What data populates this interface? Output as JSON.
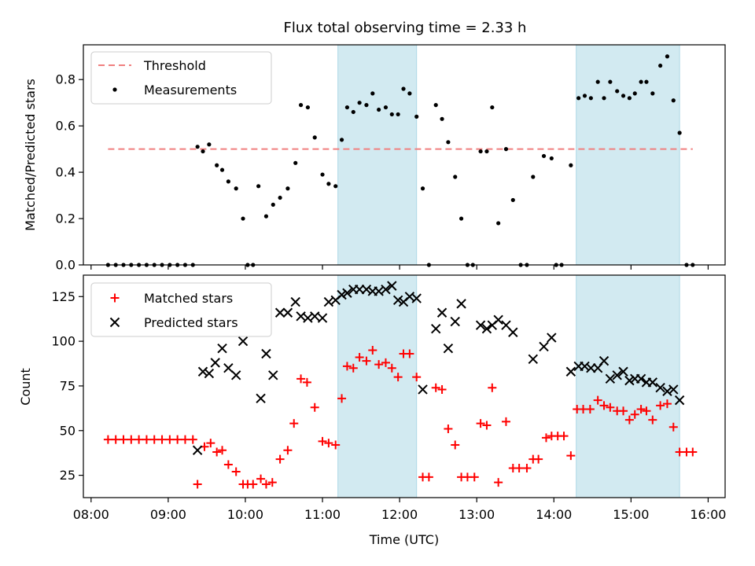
{
  "chart_data": [
    {
      "type": "scatter",
      "title": "Flux total observing time = 2.33 h",
      "ylabel": "Matched/Predicted stars",
      "xlabel": "",
      "xlim": [
        7.9,
        16.22
      ],
      "ylim": [
        0,
        0.95
      ],
      "yticks": [
        0.0,
        0.2,
        0.4,
        0.6,
        0.8
      ],
      "ytick_labels": [
        "0.0",
        "0.2",
        "0.4",
        "0.6",
        "0.8"
      ],
      "shaded_intervals": [
        [
          11.2,
          12.22
        ],
        [
          14.29,
          15.63
        ]
      ],
      "shade_color": "#add8e6",
      "legend_position": "upper left",
      "threshold": {
        "name": "Threshold",
        "value": 0.5,
        "x_range": [
          8.22,
          15.8
        ],
        "color": "#f08080"
      },
      "series": [
        {
          "name": "Measurements",
          "marker": "dot",
          "color": "#000000",
          "points": [
            [
              8.22,
              0
            ],
            [
              8.32,
              0
            ],
            [
              8.42,
              0
            ],
            [
              8.52,
              0
            ],
            [
              8.62,
              0
            ],
            [
              8.72,
              0
            ],
            [
              8.82,
              0
            ],
            [
              8.92,
              0
            ],
            [
              9.02,
              0
            ],
            [
              9.12,
              0
            ],
            [
              9.22,
              0
            ],
            [
              9.32,
              0
            ],
            [
              9.38,
              0.51
            ],
            [
              9.45,
              0.49
            ],
            [
              9.53,
              0.52
            ],
            [
              9.63,
              0.43
            ],
            [
              9.7,
              0.41
            ],
            [
              9.78,
              0.36
            ],
            [
              9.88,
              0.33
            ],
            [
              9.97,
              0.2
            ],
            [
              10.03,
              0
            ],
            [
              10.1,
              0
            ],
            [
              10.17,
              0.34
            ],
            [
              10.27,
              0.21
            ],
            [
              10.36,
              0.26
            ],
            [
              10.45,
              0.29
            ],
            [
              10.55,
              0.33
            ],
            [
              10.65,
              0.44
            ],
            [
              10.72,
              0.69
            ],
            [
              10.81,
              0.68
            ],
            [
              10.9,
              0.55
            ],
            [
              11.0,
              0.39
            ],
            [
              11.08,
              0.35
            ],
            [
              11.17,
              0.34
            ],
            [
              11.25,
              0.54
            ],
            [
              11.32,
              0.68
            ],
            [
              11.4,
              0.66
            ],
            [
              11.48,
              0.7
            ],
            [
              11.57,
              0.69
            ],
            [
              11.65,
              0.74
            ],
            [
              11.73,
              0.67
            ],
            [
              11.82,
              0.68
            ],
            [
              11.9,
              0.65
            ],
            [
              11.98,
              0.65
            ],
            [
              12.05,
              0.76
            ],
            [
              12.13,
              0.74
            ],
            [
              12.22,
              0.64
            ],
            [
              12.3,
              0.33
            ],
            [
              12.38,
              0
            ],
            [
              12.47,
              0.69
            ],
            [
              12.55,
              0.63
            ],
            [
              12.63,
              0.53
            ],
            [
              12.72,
              0.38
            ],
            [
              12.8,
              0.2
            ],
            [
              12.88,
              0
            ],
            [
              12.95,
              0
            ],
            [
              13.05,
              0.49
            ],
            [
              13.13,
              0.49
            ],
            [
              13.2,
              0.68
            ],
            [
              13.28,
              0.18
            ],
            [
              13.38,
              0.5
            ],
            [
              13.47,
              0.28
            ],
            [
              13.57,
              0
            ],
            [
              13.65,
              0
            ],
            [
              13.73,
              0.38
            ],
            [
              13.87,
              0.47
            ],
            [
              13.97,
              0.46
            ],
            [
              14.03,
              0
            ],
            [
              14.1,
              0
            ],
            [
              14.22,
              0.43
            ],
            [
              14.32,
              0.72
            ],
            [
              14.4,
              0.73
            ],
            [
              14.48,
              0.72
            ],
            [
              14.57,
              0.79
            ],
            [
              14.65,
              0.72
            ],
            [
              14.73,
              0.79
            ],
            [
              14.82,
              0.75
            ],
            [
              14.9,
              0.73
            ],
            [
              14.98,
              0.72
            ],
            [
              15.05,
              0.74
            ],
            [
              15.13,
              0.79
            ],
            [
              15.2,
              0.79
            ],
            [
              15.28,
              0.74
            ],
            [
              15.38,
              0.86
            ],
            [
              15.47,
              0.9
            ],
            [
              15.55,
              0.71
            ],
            [
              15.63,
              0.57
            ],
            [
              15.72,
              0
            ],
            [
              15.8,
              0
            ]
          ]
        }
      ]
    },
    {
      "type": "scatter",
      "title": "",
      "ylabel": "Count",
      "xlabel": "Time (UTC)",
      "xlim": [
        7.9,
        16.22
      ],
      "ylim": [
        12.5,
        137
      ],
      "xticks": [
        8,
        9,
        10,
        11,
        12,
        13,
        14,
        15,
        16
      ],
      "xtick_labels": [
        "08:00",
        "09:00",
        "10:00",
        "11:00",
        "12:00",
        "13:00",
        "14:00",
        "15:00",
        "16:00"
      ],
      "yticks": [
        25,
        50,
        75,
        100,
        125
      ],
      "ytick_labels": [
        "25",
        "50",
        "75",
        "100",
        "125"
      ],
      "shaded_intervals": [
        [
          11.2,
          12.22
        ],
        [
          14.29,
          15.63
        ]
      ],
      "shade_color": "#add8e6",
      "legend_position": "upper left",
      "series": [
        {
          "name": "Matched stars",
          "marker": "plus",
          "color": "#ff0000",
          "points": [
            [
              8.22,
              45
            ],
            [
              8.32,
              45
            ],
            [
              8.42,
              45
            ],
            [
              8.52,
              45
            ],
            [
              8.62,
              45
            ],
            [
              8.72,
              45
            ],
            [
              8.82,
              45
            ],
            [
              8.92,
              45
            ],
            [
              9.02,
              45
            ],
            [
              9.12,
              45
            ],
            [
              9.22,
              45
            ],
            [
              9.32,
              45
            ],
            [
              9.38,
              20
            ],
            [
              9.47,
              41
            ],
            [
              9.55,
              43
            ],
            [
              9.63,
              38
            ],
            [
              9.7,
              39
            ],
            [
              9.78,
              31
            ],
            [
              9.88,
              27
            ],
            [
              9.97,
              20
            ],
            [
              10.03,
              20
            ],
            [
              10.1,
              20
            ],
            [
              10.2,
              23
            ],
            [
              10.27,
              20
            ],
            [
              10.35,
              21
            ],
            [
              10.45,
              34
            ],
            [
              10.55,
              39
            ],
            [
              10.63,
              54
            ],
            [
              10.72,
              79
            ],
            [
              10.8,
              77
            ],
            [
              10.9,
              63
            ],
            [
              11.0,
              44
            ],
            [
              11.08,
              43
            ],
            [
              11.17,
              42
            ],
            [
              11.25,
              68
            ],
            [
              11.32,
              86
            ],
            [
              11.4,
              85
            ],
            [
              11.48,
              91
            ],
            [
              11.57,
              89
            ],
            [
              11.65,
              95
            ],
            [
              11.73,
              87
            ],
            [
              11.82,
              88
            ],
            [
              11.9,
              85
            ],
            [
              11.98,
              80
            ],
            [
              12.05,
              93
            ],
            [
              12.13,
              93
            ],
            [
              12.22,
              80
            ],
            [
              12.3,
              24
            ],
            [
              12.38,
              24
            ],
            [
              12.47,
              74
            ],
            [
              12.55,
              73
            ],
            [
              12.63,
              51
            ],
            [
              12.72,
              42
            ],
            [
              12.8,
              24
            ],
            [
              12.88,
              24
            ],
            [
              12.97,
              24
            ],
            [
              13.05,
              54
            ],
            [
              13.13,
              53
            ],
            [
              13.2,
              74
            ],
            [
              13.28,
              21
            ],
            [
              13.38,
              55
            ],
            [
              13.47,
              29
            ],
            [
              13.55,
              29
            ],
            [
              13.65,
              29
            ],
            [
              13.73,
              34
            ],
            [
              13.8,
              34
            ],
            [
              13.9,
              46
            ],
            [
              13.97,
              47
            ],
            [
              14.05,
              47
            ],
            [
              14.13,
              47
            ],
            [
              14.22,
              36
            ],
            [
              14.3,
              62
            ],
            [
              14.38,
              62
            ],
            [
              14.47,
              62
            ],
            [
              14.57,
              67
            ],
            [
              14.65,
              64
            ],
            [
              14.73,
              63
            ],
            [
              14.82,
              61
            ],
            [
              14.9,
              61
            ],
            [
              14.98,
              56
            ],
            [
              15.05,
              59
            ],
            [
              15.13,
              62
            ],
            [
              15.2,
              61
            ],
            [
              15.28,
              56
            ],
            [
              15.38,
              64
            ],
            [
              15.47,
              65
            ],
            [
              15.55,
              52
            ],
            [
              15.63,
              38
            ],
            [
              15.72,
              38
            ],
            [
              15.8,
              38
            ]
          ]
        },
        {
          "name": "Predicted stars",
          "marker": "x",
          "color": "#000000",
          "points": [
            [
              9.38,
              39
            ],
            [
              9.45,
              83
            ],
            [
              9.53,
              82
            ],
            [
              9.61,
              88
            ],
            [
              9.7,
              96
            ],
            [
              9.78,
              85
            ],
            [
              9.88,
              81
            ],
            [
              9.97,
              100
            ],
            [
              10.2,
              68
            ],
            [
              10.27,
              93
            ],
            [
              10.36,
              81
            ],
            [
              10.45,
              116
            ],
            [
              10.55,
              116
            ],
            [
              10.65,
              122
            ],
            [
              10.72,
              114
            ],
            [
              10.81,
              113
            ],
            [
              10.9,
              114
            ],
            [
              11.0,
              113
            ],
            [
              11.08,
              122
            ],
            [
              11.17,
              123
            ],
            [
              11.25,
              126
            ],
            [
              11.32,
              127
            ],
            [
              11.4,
              129
            ],
            [
              11.48,
              129
            ],
            [
              11.57,
              129
            ],
            [
              11.65,
              128
            ],
            [
              11.73,
              128
            ],
            [
              11.82,
              129
            ],
            [
              11.9,
              131
            ],
            [
              11.98,
              123
            ],
            [
              12.05,
              122
            ],
            [
              12.13,
              125
            ],
            [
              12.22,
              124
            ],
            [
              12.3,
              73
            ],
            [
              12.47,
              107
            ],
            [
              12.55,
              116
            ],
            [
              12.63,
              96
            ],
            [
              12.72,
              111
            ],
            [
              12.8,
              121
            ],
            [
              13.05,
              109
            ],
            [
              13.13,
              107
            ],
            [
              13.2,
              109
            ],
            [
              13.28,
              112
            ],
            [
              13.38,
              109
            ],
            [
              13.47,
              105
            ],
            [
              13.73,
              90
            ],
            [
              13.87,
              97
            ],
            [
              13.97,
              102
            ],
            [
              14.22,
              83
            ],
            [
              14.32,
              86
            ],
            [
              14.4,
              86
            ],
            [
              14.48,
              85
            ],
            [
              14.57,
              85
            ],
            [
              14.65,
              89
            ],
            [
              14.73,
              79
            ],
            [
              14.82,
              81
            ],
            [
              14.9,
              83
            ],
            [
              14.98,
              78
            ],
            [
              15.05,
              79
            ],
            [
              15.13,
              79
            ],
            [
              15.2,
              77
            ],
            [
              15.28,
              77
            ],
            [
              15.38,
              74
            ],
            [
              15.47,
              72
            ],
            [
              15.55,
              73
            ],
            [
              15.63,
              67
            ]
          ]
        }
      ]
    }
  ]
}
